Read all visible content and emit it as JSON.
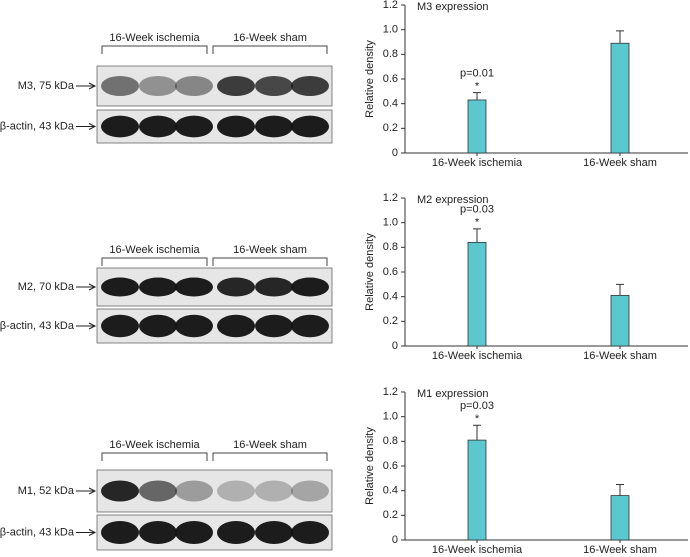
{
  "blots": [
    {
      "groups": [
        "16-Week ischemia",
        "16-Week sham"
      ],
      "rows": [
        "M3, 75 kDa",
        "β-actin, 43 kDa"
      ]
    },
    {
      "groups": [
        "16-Week ischemia",
        "16-Week sham"
      ],
      "rows": [
        "M2, 70 kDa",
        "β-actin, 43 kDa"
      ]
    },
    {
      "groups": [
        "16-Week ischemia",
        "16-Week sham"
      ],
      "rows": [
        "M1, 52 kDa",
        "β-actin, 43 kDa"
      ]
    }
  ],
  "chart_data": [
    {
      "type": "bar",
      "title": "M3 expression",
      "y_label": "Relative density",
      "categories": [
        "16-Week ischemia",
        "16-Week sham"
      ],
      "values": [
        0.43,
        0.89
      ],
      "errors": [
        0.06,
        0.1
      ],
      "color": "#5bc8d0",
      "annotations": [
        "p=0.01",
        "*"
      ],
      "ylim": [
        0,
        1.2
      ],
      "yticks": [
        0,
        0.2,
        0.4,
        0.6,
        0.8,
        {
          "value": 1,
          "label": "1.0"
        },
        1.2
      ]
    },
    {
      "type": "bar",
      "title": "M2 expression",
      "y_label": "Relative density",
      "categories": [
        "16-Week ischemia",
        "16-Week sham"
      ],
      "values": [
        0.84,
        0.41
      ],
      "errors": [
        0.11,
        0.09
      ],
      "color": "#5bc8d0",
      "annotations": [
        "p=0.03",
        "*"
      ],
      "ylim": [
        0,
        1.2
      ],
      "yticks": [
        0,
        0.2,
        0.4,
        0.6,
        0.8,
        {
          "value": 1,
          "label": "1.0"
        },
        1.2
      ]
    },
    {
      "type": "bar",
      "title": "M1 expression",
      "y_label": "Relative density",
      "categories": [
        "16-Week ischemia",
        "16-Week sham"
      ],
      "values": [
        0.81,
        0.36
      ],
      "errors": [
        0.12,
        0.09
      ],
      "color": "#5bc8d0",
      "annotations": [
        "p=0.03",
        "*"
      ],
      "ylim": [
        0,
        1.2
      ],
      "yticks": [
        0,
        0.2,
        0.4,
        0.6,
        0.8,
        {
          "value": 1,
          "label": "1.0"
        },
        1.2
      ]
    }
  ]
}
